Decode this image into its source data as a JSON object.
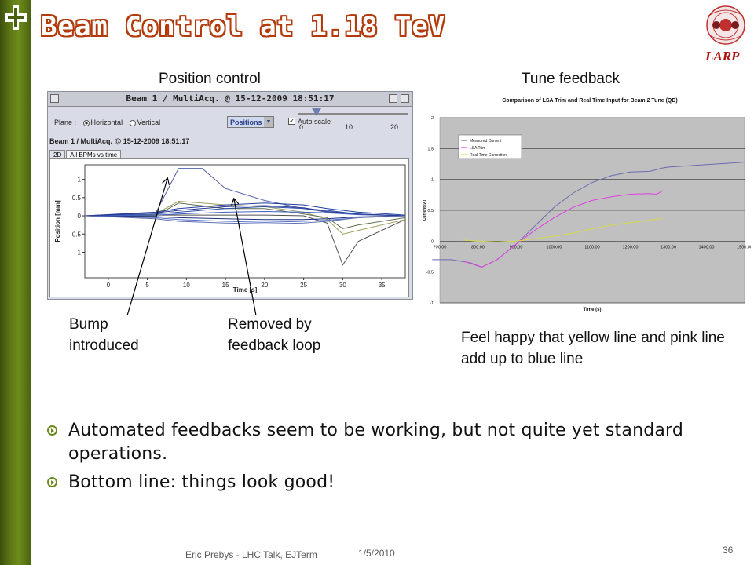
{
  "slide": {
    "title": "Beam Control at 1.18 TeV",
    "brand_logo_text": "LARP",
    "accent_color": "#b23a0b",
    "sidebar_color": "#5f7a16"
  },
  "captions": {
    "left": "Position control",
    "right": "Tune feedback"
  },
  "annotations": {
    "bump": "Bump introduced",
    "removed": "Removed by feedback loop",
    "happy": "Feel happy that yellow line and pink line add up to blue line"
  },
  "position_control": {
    "window_title": "Beam 1 / MultiAcq. @ 15-12-2009 18:51:17",
    "plane_label": "Plane :",
    "plane_options": [
      "Horizontal",
      "Vertical"
    ],
    "plane_selected": "Horizontal",
    "mode_value": "Positions",
    "autoscale_label": "Auto scale",
    "slider_ticks": [
      "0",
      "10",
      "20"
    ],
    "subtitle": "Beam 1 / MultiAcq. @ 15-12-2009 18:51:17",
    "tabs": [
      "2D",
      "All BPMs vs time"
    ],
    "active_tab": "All BPMs vs time",
    "chart_data": {
      "type": "line",
      "xlabel": "Time [s]",
      "ylabel": "Position [mm]",
      "xlim": [
        -3,
        38
      ],
      "ylim": [
        -1.7,
        1.4
      ],
      "xticks": [
        "0",
        "5",
        "10",
        "15",
        "20",
        "25",
        "30",
        "35"
      ],
      "yticks": [
        "1",
        "0.5",
        "0",
        "-0.5",
        "-1"
      ],
      "series": [
        {
          "color": "#5060a8",
          "x": [
            -3,
            6,
            9,
            12,
            15,
            20,
            25,
            28,
            32,
            38
          ],
          "y": [
            0,
            0.05,
            1.3,
            1.3,
            0.75,
            0.42,
            0.2,
            0.1,
            0.05,
            0
          ]
        },
        {
          "color": "#505050",
          "x": [
            -3,
            6,
            10,
            15,
            20,
            25,
            28,
            30,
            32,
            38
          ],
          "y": [
            0,
            0.02,
            0.02,
            0.02,
            0.02,
            0,
            -0.2,
            -1.35,
            -0.7,
            -0.1
          ]
        },
        {
          "color": "#a0a060",
          "x": [
            -3,
            6,
            9,
            15,
            20,
            25,
            28,
            30,
            32,
            38
          ],
          "y": [
            0,
            0.05,
            0.4,
            0.3,
            0.25,
            0.1,
            -0.1,
            -0.5,
            -0.4,
            -0.1
          ]
        },
        {
          "color": "#607050",
          "x": [
            -3,
            6,
            9,
            15,
            20,
            25,
            28,
            30,
            32,
            38
          ],
          "y": [
            0,
            0,
            0.35,
            0.2,
            0.2,
            0.05,
            -0.05,
            -0.35,
            -0.25,
            -0.05
          ]
        },
        {
          "color": "#2040a0",
          "x": [
            -3,
            6,
            9,
            15,
            20,
            25,
            28,
            32,
            38
          ],
          "y": [
            0,
            0.1,
            0.2,
            0.3,
            0.35,
            0.3,
            0.2,
            0.1,
            0.02
          ]
        },
        {
          "color": "#3050b0",
          "x": [
            -3,
            6,
            9,
            15,
            20,
            25,
            28,
            32,
            38
          ],
          "y": [
            0,
            0.05,
            0.1,
            0.2,
            0.25,
            0.2,
            0.15,
            0.05,
            0
          ]
        },
        {
          "color": "#4060c0",
          "x": [
            -3,
            6,
            9,
            15,
            20,
            25,
            28,
            32,
            38
          ],
          "y": [
            0,
            0.02,
            0.05,
            0.1,
            0.12,
            0.1,
            0.08,
            0.03,
            0
          ]
        },
        {
          "color": "#203080",
          "x": [
            -3,
            6,
            9,
            15,
            20,
            25,
            28,
            32,
            38
          ],
          "y": [
            0,
            -0.02,
            -0.05,
            -0.08,
            -0.1,
            -0.1,
            -0.08,
            -0.03,
            0
          ]
        },
        {
          "color": "#5070c8",
          "x": [
            -3,
            6,
            9,
            15,
            20,
            25,
            28,
            32,
            38
          ],
          "y": [
            0,
            -0.05,
            -0.1,
            -0.15,
            -0.18,
            -0.15,
            -0.12,
            -0.05,
            0
          ]
        },
        {
          "color": "#2a3a90",
          "x": [
            -3,
            6,
            9,
            15,
            20,
            25,
            28,
            32,
            38
          ],
          "y": [
            0,
            0.08,
            0.15,
            0.25,
            0.28,
            0.22,
            0.12,
            0.05,
            0
          ]
        },
        {
          "color": "#6070b0",
          "x": [
            -3,
            6,
            9,
            15,
            20,
            25,
            28,
            32,
            38
          ],
          "y": [
            0,
            -0.08,
            -0.15,
            -0.2,
            -0.22,
            -0.2,
            -0.15,
            -0.05,
            0
          ]
        }
      ]
    }
  },
  "tune_feedback": {
    "chart_data": {
      "type": "line",
      "title": "Comparison of LSA Trim and Real Time Input for Beam 2 Tune (QD)",
      "xlabel": "Time (s)",
      "ylabel": "Current (A)",
      "xlim": [
        700,
        1500
      ],
      "ylim": [
        -1,
        2
      ],
      "xticks": [
        "700.00",
        "800.00",
        "900.00",
        "1000.00",
        "1100.00",
        "1200.00",
        "1300.00",
        "1400.00",
        "1500.00"
      ],
      "yticks": [
        "2",
        "1.5",
        "1",
        "0.5",
        "0",
        "-0.5",
        "-1"
      ],
      "legend_position": "top-left",
      "series": [
        {
          "name": "Measured Current",
          "color": "#6b6bb0",
          "x": [
            680,
            730,
            780,
            810,
            850,
            900,
            950,
            1000,
            1050,
            1100,
            1150,
            1200,
            1250,
            1270,
            1280,
            1300,
            1350,
            1400,
            1450,
            1500
          ],
          "y": [
            -0.3,
            -0.3,
            -0.35,
            -0.42,
            -0.3,
            -0.05,
            0.25,
            0.55,
            0.78,
            0.95,
            1.06,
            1.12,
            1.13,
            1.16,
            1.18,
            1.2,
            1.22,
            1.24,
            1.26,
            1.28
          ]
        },
        {
          "name": "LSA Trim",
          "color": "#e040e0",
          "x": [
            700,
            760,
            810,
            850,
            900,
            950,
            1000,
            1050,
            1100,
            1150,
            1200,
            1250,
            1270,
            1285
          ],
          "y": [
            -0.32,
            -0.32,
            -0.42,
            -0.3,
            -0.05,
            0.18,
            0.38,
            0.55,
            0.66,
            0.72,
            0.76,
            0.77,
            0.76,
            0.82
          ]
        },
        {
          "name": "Real Time Correction",
          "color": "#d8d84a",
          "x": [
            760,
            800,
            850,
            900,
            950,
            1000,
            1050,
            1100,
            1150,
            1200,
            1250,
            1285
          ],
          "y": [
            0.02,
            0.0,
            -0.01,
            0.0,
            0.04,
            0.08,
            0.13,
            0.2,
            0.26,
            0.3,
            0.34,
            0.37
          ]
        }
      ]
    }
  },
  "bullets": [
    "Automated feedbacks seem to be working, but not quite yet standard operations.",
    "Bottom line: things look good!"
  ],
  "footer": {
    "author": "Eric Prebys - LHC Talk, EJTerm",
    "date": "1/5/2010",
    "page": "36"
  }
}
